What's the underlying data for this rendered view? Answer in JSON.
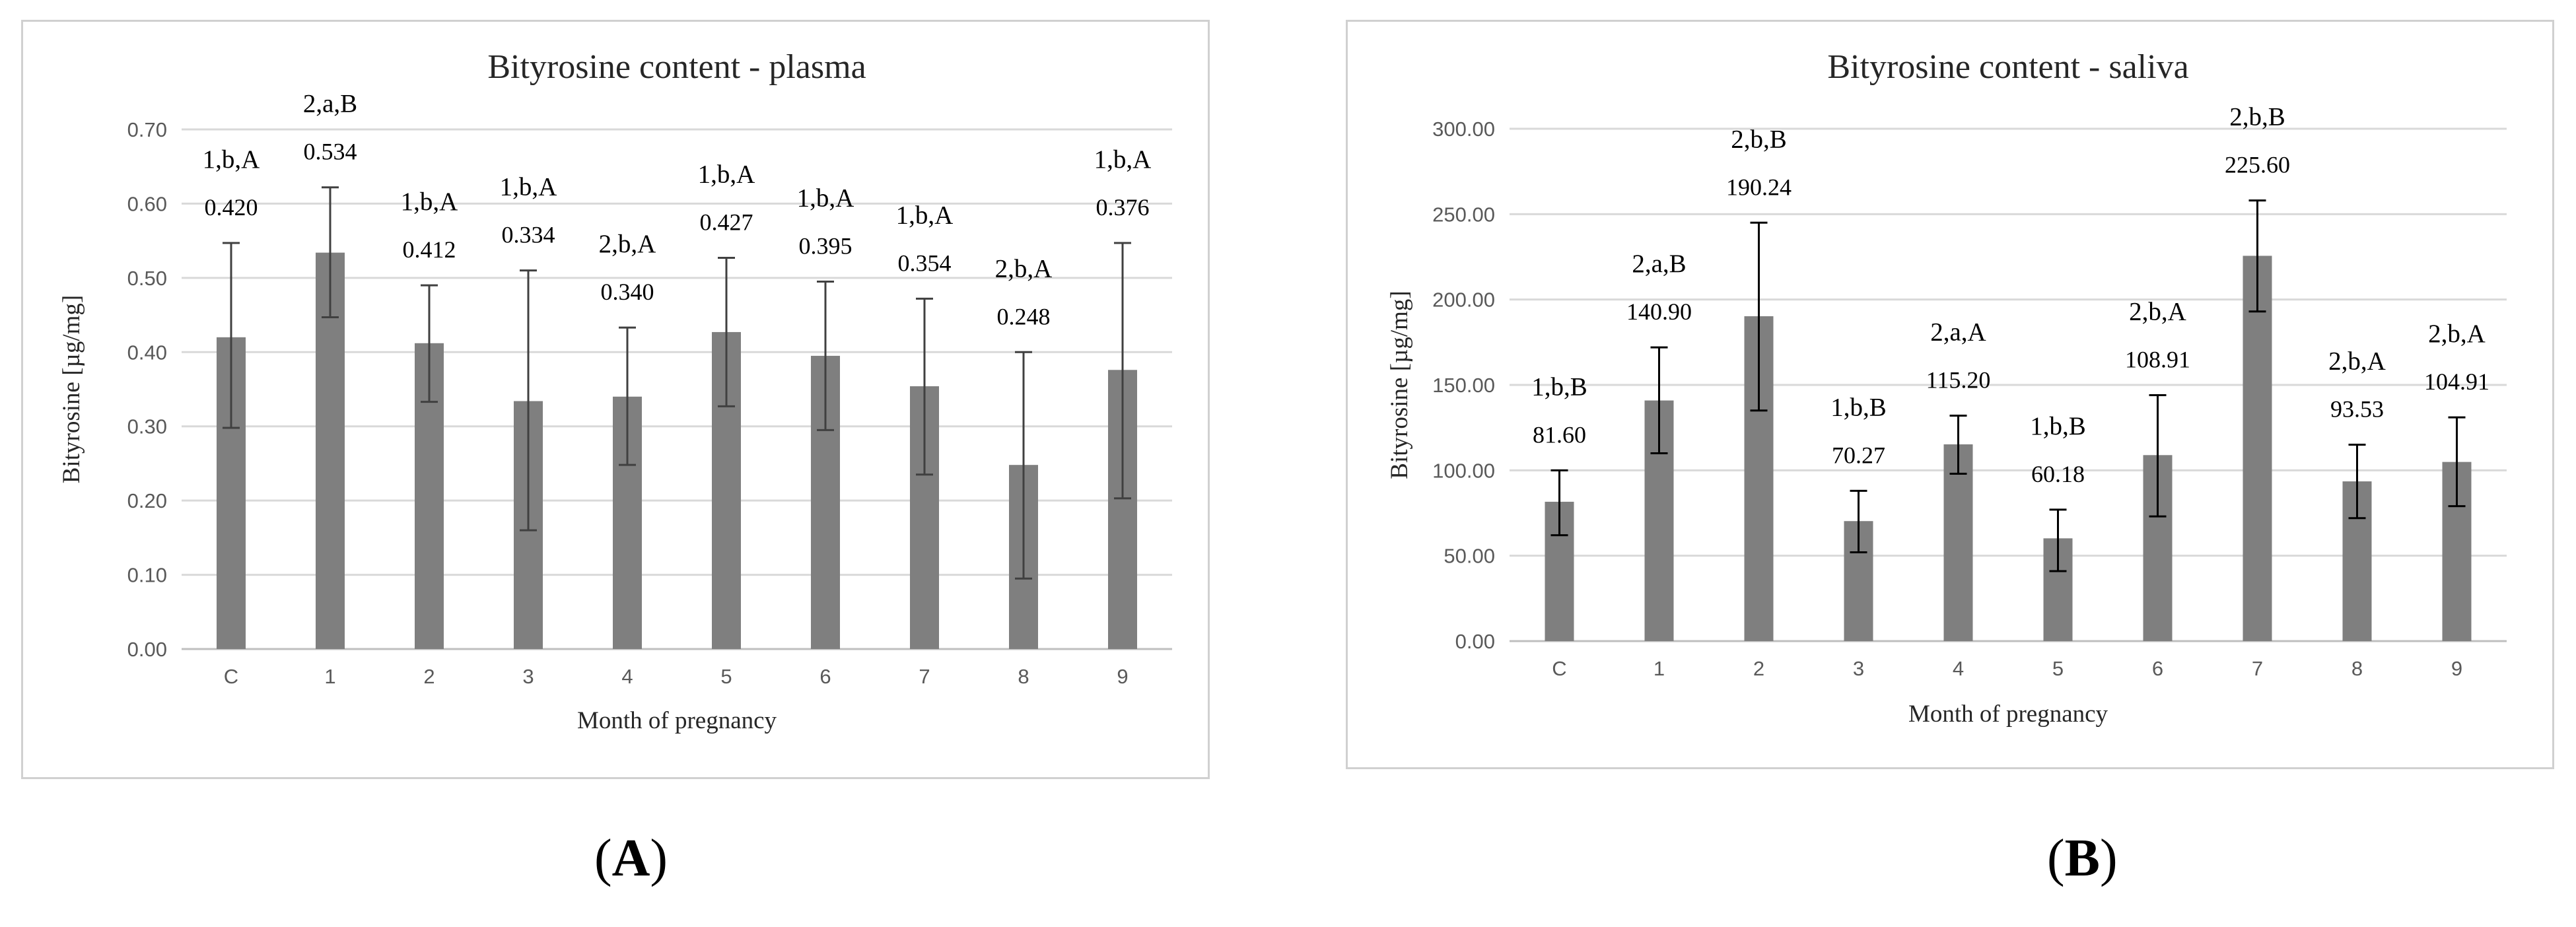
{
  "chart_data": [
    {
      "type": "bar",
      "panel_label": "A",
      "title": "Bityrosine content - plasma",
      "xlabel": "Month of pregnancy",
      "ylabel": "Bityrosine [µg/mg]",
      "ylim": [
        0,
        0.7
      ],
      "yticks": [
        "0.00",
        "0.10",
        "0.20",
        "0.30",
        "0.40",
        "0.50",
        "0.60",
        "0.70"
      ],
      "grid": true,
      "categories": [
        "C",
        "1",
        "2",
        "3",
        "4",
        "5",
        "6",
        "7",
        "8",
        "9"
      ],
      "values": [
        0.42,
        0.534,
        0.412,
        0.334,
        0.34,
        0.427,
        0.395,
        0.354,
        0.248,
        0.376
      ],
      "value_labels": [
        "0.420",
        "0.534",
        "0.412",
        "0.334",
        "0.340",
        "0.427",
        "0.395",
        "0.354",
        "0.248",
        "0.376"
      ],
      "error_low": [
        0.298,
        0.447,
        0.333,
        0.16,
        0.248,
        0.327,
        0.295,
        0.235,
        0.095,
        0.203
      ],
      "error_high": [
        0.547,
        0.622,
        0.49,
        0.51,
        0.433,
        0.527,
        0.495,
        0.472,
        0.4,
        0.547
      ],
      "annotations": [
        "1,b,A",
        "2,a,B",
        "1,b,A",
        "1,b,A",
        "2,b,A",
        "1,b,A",
        "1,b,A",
        "1,b,A",
        "2,b,A",
        "1,b,A"
      ],
      "bar_color": "#7f7f7f",
      "error_color": "#404040",
      "grid_color": "#d9d9d9"
    },
    {
      "type": "bar",
      "panel_label": "B",
      "title": "Bityrosine content - saliva",
      "xlabel": "Month of pregnancy",
      "ylabel": "Bityrosine [µg/mg]",
      "ylim": [
        0,
        300
      ],
      "yticks": [
        "0.00",
        "50.00",
        "100.00",
        "150.00",
        "200.00",
        "250.00",
        "300.00"
      ],
      "grid": true,
      "categories": [
        "C",
        "1",
        "2",
        "3",
        "4",
        "5",
        "6",
        "7",
        "8",
        "9"
      ],
      "values": [
        81.6,
        140.9,
        190.24,
        70.27,
        115.2,
        60.18,
        108.91,
        225.6,
        93.53,
        104.91
      ],
      "value_labels": [
        "81.60",
        "140.90",
        "190.24",
        "70.27",
        "115.20",
        "60.18",
        "108.91",
        "225.60",
        "93.53",
        "104.91"
      ],
      "error_low": [
        62,
        110,
        135,
        52,
        98,
        41,
        73,
        193,
        72,
        79
      ],
      "error_high": [
        100,
        172,
        245,
        88,
        132,
        77,
        144,
        258,
        115,
        131
      ],
      "annotations": [
        "1,b,B",
        "2,a,B",
        "2,b,B",
        "1,b,B",
        "2,a,A",
        "1,b,B",
        "2,b,A",
        "2,b,B",
        "2,b,A",
        "2,b,A"
      ],
      "bar_color": "#7f7f7f",
      "error_color": "#000000",
      "grid_color": "#d9d9d9"
    }
  ],
  "captions": {
    "a": "A",
    "b": "B"
  }
}
